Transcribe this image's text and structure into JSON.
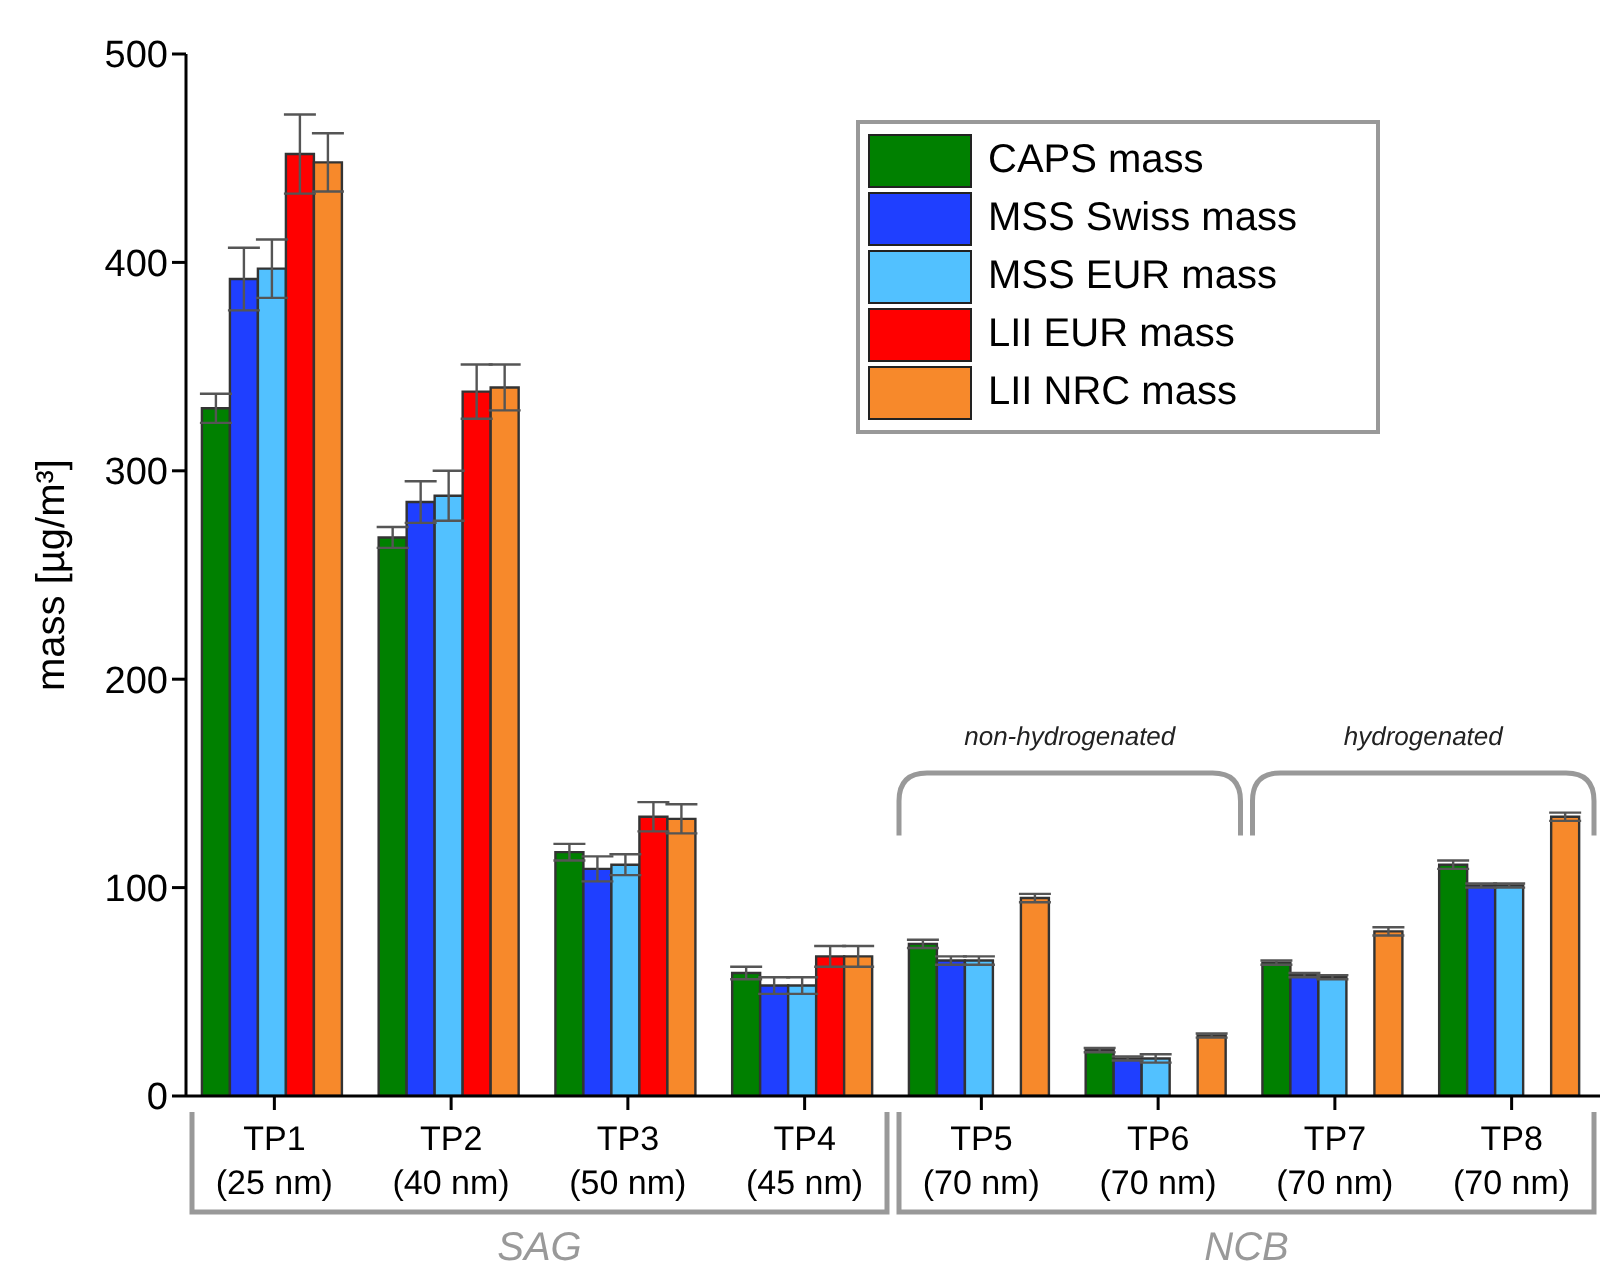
{
  "chart_data": {
    "type": "bar",
    "ylabel": "mass [µg/m³]",
    "categories": [
      "TP1 (25 nm)",
      "TP2 (40 nm)",
      "TP3 (50 nm)",
      "TP4 (45 nm)",
      "TP5 (70 nm)",
      "TP6 (70 nm)",
      "TP7 (70 nm)",
      "TP8 (70 nm)"
    ],
    "series": [
      {
        "name": "CAPS mass",
        "color": "#008000",
        "values": [
          330,
          268,
          117,
          59,
          73,
          22,
          64,
          111
        ],
        "errors": [
          7,
          5,
          4,
          3,
          2,
          1,
          1,
          2
        ]
      },
      {
        "name": "MSS Swiss mass",
        "color": "#1f3fff",
        "values": [
          392,
          285,
          109,
          53,
          65,
          18,
          58,
          101
        ],
        "errors": [
          15,
          10,
          6,
          4,
          2,
          1,
          1,
          1
        ]
      },
      {
        "name": "MSS EUR mass",
        "color": "#52c1ff",
        "values": [
          397,
          288,
          111,
          53,
          65,
          18,
          57,
          101
        ],
        "errors": [
          14,
          12,
          5,
          4,
          2,
          2,
          1,
          1
        ]
      },
      {
        "name": "LII EUR mass",
        "color": "#ff0000",
        "values": [
          452,
          338,
          134,
          67,
          null,
          null,
          null,
          null
        ],
        "errors": [
          19,
          13,
          7,
          5,
          null,
          null,
          null,
          null
        ]
      },
      {
        "name": "LII NRC mass",
        "color": "#f7892b",
        "values": [
          448,
          340,
          133,
          67,
          95,
          29,
          79,
          134
        ],
        "errors": [
          14,
          11,
          7,
          5,
          2,
          1,
          2,
          2
        ]
      }
    ],
    "ylim": [
      0,
      500
    ],
    "yticks": [
      0,
      100,
      200,
      300,
      400,
      500
    ],
    "grid": false,
    "legend": "top right",
    "annotations": [
      "non-hydrogenated",
      "hydrogenated",
      "SAG",
      "NCB"
    ]
  }
}
